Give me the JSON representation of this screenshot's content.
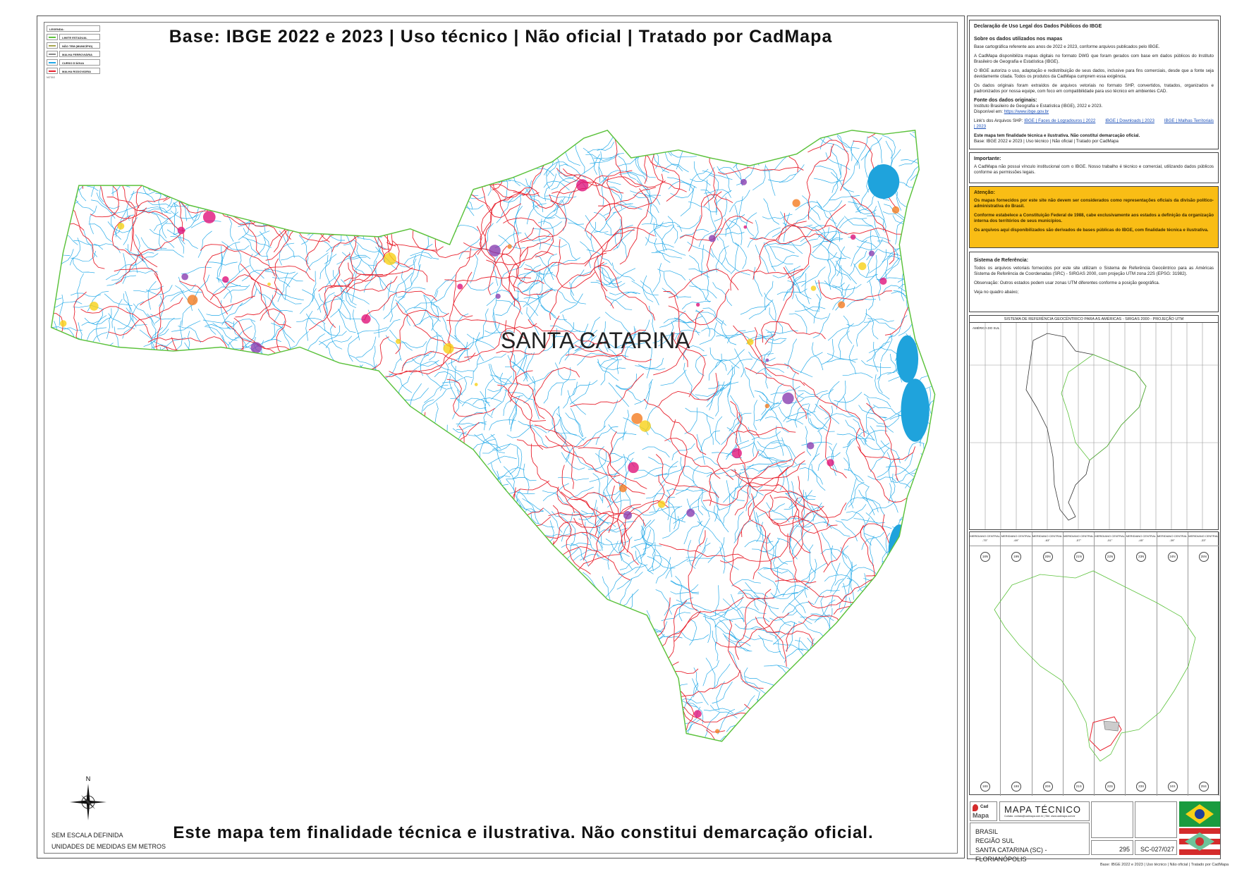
{
  "title": "Base: IBGE 2022 e 2023 | Uso técnico | Não oficial | Tratado por CadMapa",
  "bottom_note": "Este mapa tem finalidade técnica e ilustrativa. Não constitui demarcação oficial.",
  "legend": {
    "title": "LEGENDA:",
    "items": [
      {
        "label": "LIMITE ESTADUAL",
        "color": "#5cc23c"
      },
      {
        "label": "NÃO TEM (MUNICÍPIO)",
        "color": "#a7a64f"
      },
      {
        "label": "MALHA FERROVIÁRIA",
        "color": "#888888"
      },
      {
        "label": "CURSO D'ÁGUA",
        "color": "#20a8e8"
      },
      {
        "label": "MALHA RODOVIÁRIA",
        "color": "#e8222e"
      }
    ]
  },
  "map": {
    "state_label": "SANTA CATARINA",
    "north": "N",
    "scale": "SEM ESCALA DEFINIDA",
    "units": "UNIDADES DE MEDIDAS EM METROS",
    "colors": {
      "border": "#5cc23c",
      "rivers": "#20a8e8",
      "roads": "#e8222e",
      "water": "#1fa3dc",
      "urban": "#e0147a"
    }
  },
  "panel": {
    "decl_title": "Declaração de Uso Legal dos Dados Públicos do IBGE",
    "about_title": "Sobre os dados utilizados nos mapas",
    "about_1": "Base cartográfica referente aos anos de 2022 e 2023, conforme arquivos publicados pelo IBGE.",
    "about_2": "A CadMapa disponibiliza mapas digitais no formato DWG que foram gerados com base em dados públicos do Instituto Brasileiro de Geografia e Estatística (IBGE).",
    "about_3": "O IBGE autoriza o uso, adaptação e redistribuição de seus dados, inclusive para fins comerciais, desde que a fonte seja devidamente citada. Todos os produtos da CadMapa cumprem essa exigência.",
    "about_4": "Os dados originais foram extraídos de arquivos vetoriais no formato SHP, convertidos, tratados, organizados e padronizados por nossa equipe, com foco em compatibilidade para uso técnico em ambientes CAD.",
    "source_title": "Fonte dos dados originais:",
    "source_1": "Instituto Brasileiro de Geografia e Estatística (IBGE), 2022 e 2023.",
    "source_avail": "Disponível em:",
    "source_url": "https://www.ibge.gov.br",
    "links_label": "Link's dos Arquivos SHP:",
    "links": [
      "IBGE | Faces de Logradouros | 2022",
      "IBGE | Downloads | 2023",
      "IBGE | Malhas Territoriais | 2023"
    ],
    "purpose_1": "Este mapa tem finalidade técnica e ilustrativa. Não constitui demarcação oficial.",
    "purpose_2": "Base: IBGE 2022 e 2023 | Uso técnico | Não oficial | Tratado por CadMapa",
    "important_title": "Importante:",
    "important_text": "A CadMapa não possui vínculo institucional com o IBGE. Nosso trabalho é técnico e comercial, utilizando dados públicos conforme as permissões legais.",
    "warn_title": "Atenção:",
    "warn_1": "Os mapas fornecidos por este site não devem ser considerados como representações oficiais da divisão político-administrativa do Brasil.",
    "warn_2": "Conforme estabelece a Constituição Federal de 1988, cabe exclusivamente aos estados a definição da organização interna dos territórios de seus municípios.",
    "warn_3": "Os arquivos aqui disponibilizados são derivados de bases públicas do IBGE, com finalidade técnica e ilustrativa.",
    "warn_color": "#f9bd15",
    "ref_title": "Sistema de Referência:",
    "ref_1": "Todos os arquivos vetoriais fornecidos por este site utilizam o Sistema de Referência Geocêntrico para as Américas Sistema de Referência de Coordenadas (SRC) - SIRGAS 2000, com projeção UTM zona 22S (EPSG: 31982).",
    "ref_2": "Observação: Outros estados podem usar zonas UTM diferentes conforme a posição geográfica.",
    "ref_3": "Veja no quadro abaixo;",
    "refmap_title": "SISTEMA DE REFERÊNCIA GEOCÊNTRICO PARA AS AMÉRICAS - SIRGAS 2000 - PROJEÇÃO UTM",
    "refmap_label": "AMÉRICA DO SUL",
    "meridian_label": "MERIDIANO CENTRAL",
    "meridians": [
      "-75°",
      "-69°",
      "-63°",
      "-57°",
      "-51°",
      "-45°",
      "-39°",
      "-33°"
    ],
    "zones_n": [
      "18N",
      "19N",
      "20N",
      "21N",
      "22N",
      "23N",
      "24N",
      "25N"
    ],
    "zones_s": [
      "18S",
      "19S",
      "20S",
      "21S",
      "22S",
      "23S",
      "24S",
      "25S"
    ]
  },
  "title_block": {
    "logo_top": "Cad",
    "logo_bottom": "Mapa",
    "heading": "MAPA TÉCNICO",
    "contact": "Contato: contato@cadmapa.com.br | Site: www.cadmapa.com.br",
    "location": [
      "BRASIL",
      "REGIÃO SUL",
      "SANTA CATARINA (SC) - FLORIANÓPOLIS"
    ],
    "sheet_number": "295",
    "sheet_code": "SC-027/027",
    "flag_colors": {
      "brazil_green": "#1a9b3f",
      "brazil_yellow": "#f7d117",
      "brazil_blue": "#1f3f9a",
      "sc_red": "#d42b2b",
      "sc_green": "#6cc39a"
    }
  },
  "footer": "Base: IBGE 2022 e 2023 | Uso técnico | Não oficial | Tratado por CadMapa"
}
